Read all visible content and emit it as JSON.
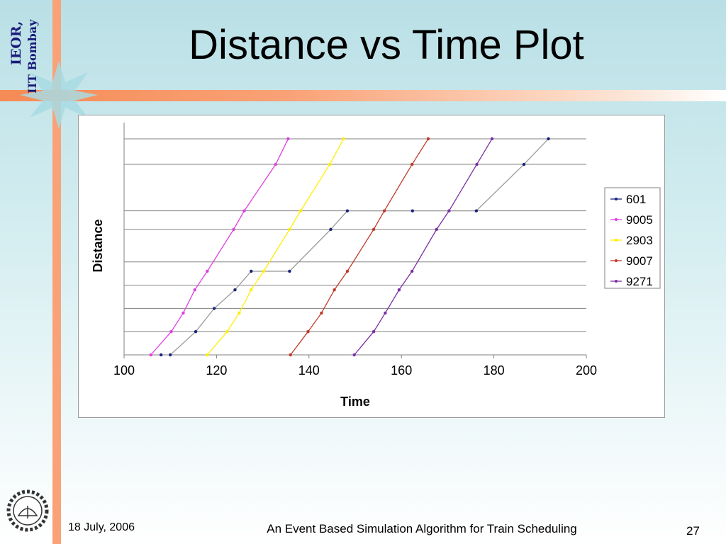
{
  "slide": {
    "logo_line1": "IEOR,",
    "logo_line2": "IIT Bombay",
    "title": "Distance vs Time Plot",
    "footer_date": "18 July, 2006",
    "footer_caption": "An Event Based Simulation Algorithm for Train Scheduling",
    "page_number": "27",
    "accent_color": "#f9a277",
    "background_color": "#c7e7ec"
  },
  "chart_data": {
    "type": "line",
    "xlabel": "Time",
    "ylabel": "Distance",
    "xlim": [
      100,
      200
    ],
    "xticks": [
      100,
      120,
      140,
      160,
      180,
      200
    ],
    "ylim": [
      0,
      10
    ],
    "station_levels": [
      0,
      1,
      2,
      3,
      4,
      5.4,
      6.2,
      8.2,
      9.3
    ],
    "y_tick_labels_shown": false,
    "horizontal_gridlines": true,
    "legend_position": "right",
    "series": [
      {
        "name": "601",
        "color": "#1a237e",
        "x": [
          108,
          110,
          115.5,
          119.5,
          124,
          127.5,
          135.8,
          144.7,
          148.3,
          162.4,
          176.2,
          186.5,
          191.8
        ],
        "y": [
          0,
          0,
          1,
          2,
          2.8,
          3.6,
          3.6,
          5.4,
          6.2,
          6.2,
          6.2,
          8.2,
          9.3
        ]
      },
      {
        "name": "9005",
        "color": "#e040e0",
        "x": [
          105.8,
          110.2,
          112.8,
          115.3,
          118,
          123.7,
          126,
          132.8,
          135.5
        ],
        "y": [
          0,
          1,
          1.8,
          2.8,
          3.6,
          5.4,
          6.2,
          8.2,
          9.3
        ]
      },
      {
        "name": "2903",
        "color": "#ffee00",
        "x": [
          118,
          122.3,
          124.9,
          127.5,
          130.2,
          135.8,
          138.2,
          144.5,
          147.5
        ],
        "y": [
          0,
          1,
          1.8,
          2.8,
          3.6,
          5.4,
          6.2,
          8.2,
          9.3
        ]
      },
      {
        "name": "9007",
        "color": "#c0392b",
        "x": [
          136,
          139.8,
          142.7,
          145.5,
          148.3,
          154,
          156.3,
          162.3,
          165.8
        ],
        "y": [
          0,
          1,
          1.8,
          2.8,
          3.6,
          5.4,
          6.2,
          8.2,
          9.3
        ]
      },
      {
        "name": "9271",
        "color": "#7b2fa0",
        "x": [
          149.8,
          154,
          156.5,
          159.5,
          162.3,
          167.6,
          170.3,
          176.3,
          179.6
        ],
        "y": [
          0,
          1,
          1.8,
          2.8,
          3.6,
          5.4,
          6.2,
          8.2,
          9.3
        ]
      }
    ]
  }
}
